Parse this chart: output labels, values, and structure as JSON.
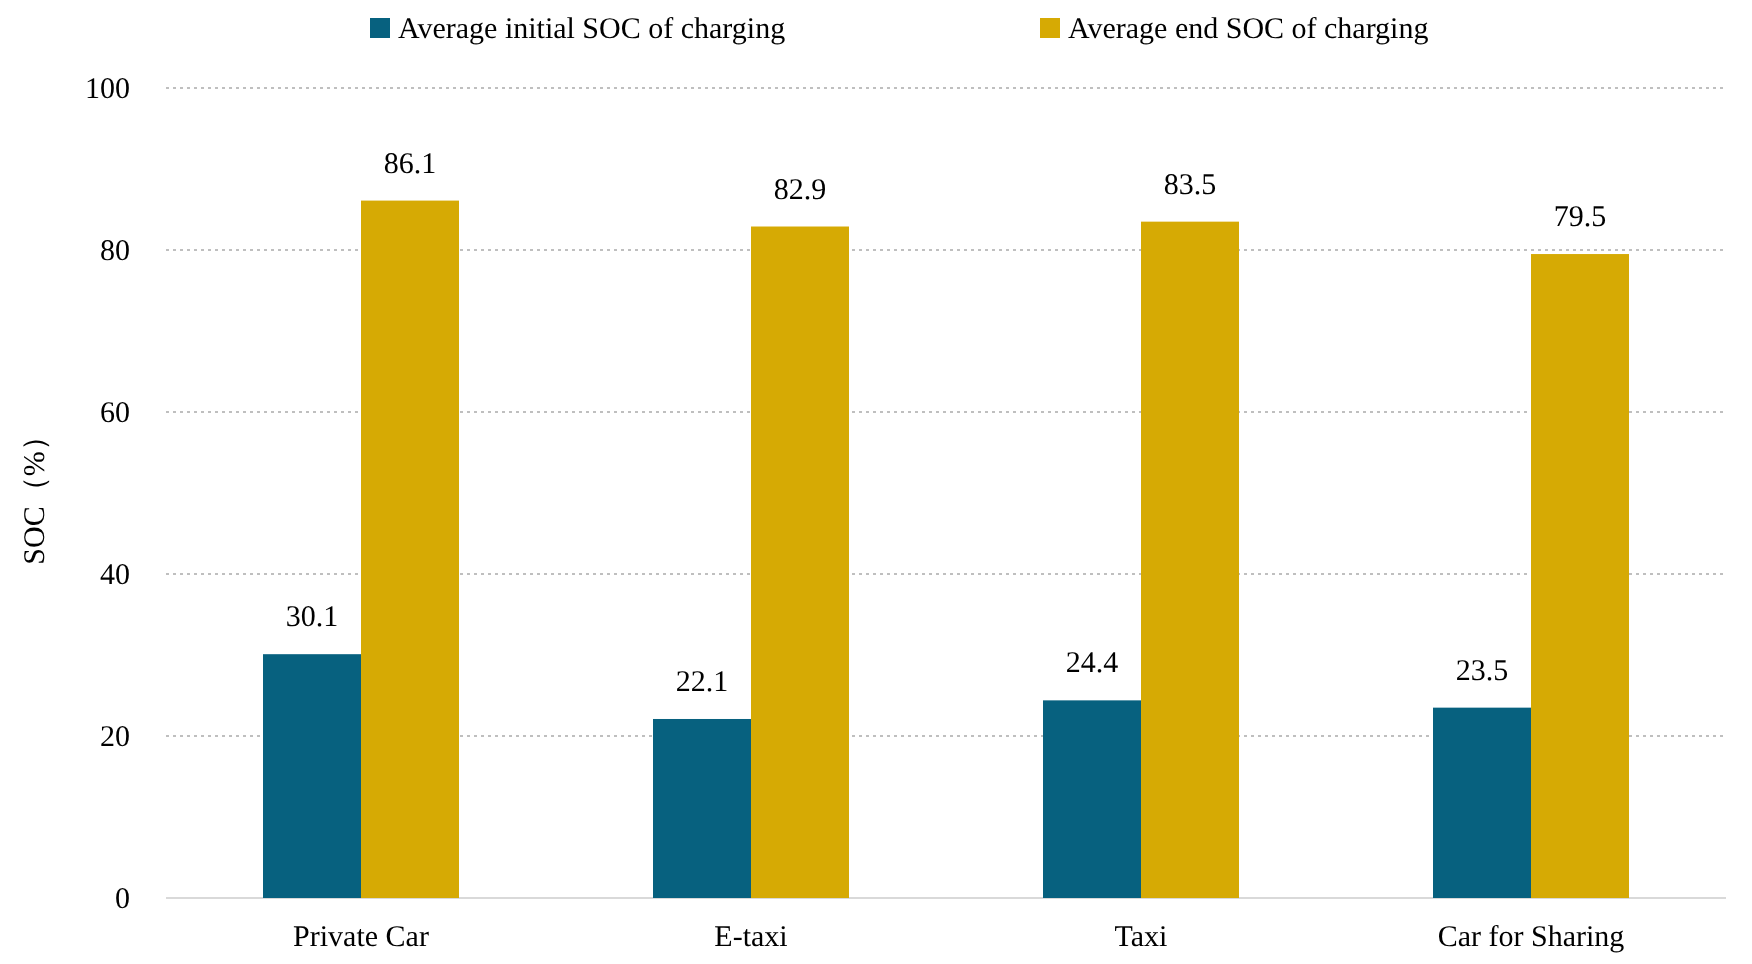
{
  "chart_data": {
    "type": "bar",
    "ylabel": "SOC（%）",
    "categories": [
      "Private Car",
      "E-taxi",
      "Taxi",
      "Car for Sharing"
    ],
    "series": [
      {
        "name": "Average initial SOC of charging",
        "color": "#07617f",
        "values": [
          30.1,
          22.1,
          24.4,
          23.5
        ]
      },
      {
        "name": "Average end SOC of charging",
        "color": "#d6aa04",
        "values": [
          86.1,
          82.9,
          83.5,
          79.5
        ]
      }
    ],
    "ylim": [
      0,
      100
    ],
    "yticks": [
      0,
      20,
      40,
      60,
      80,
      100
    ],
    "grid": "y",
    "legend": "top",
    "data_labels": true
  }
}
